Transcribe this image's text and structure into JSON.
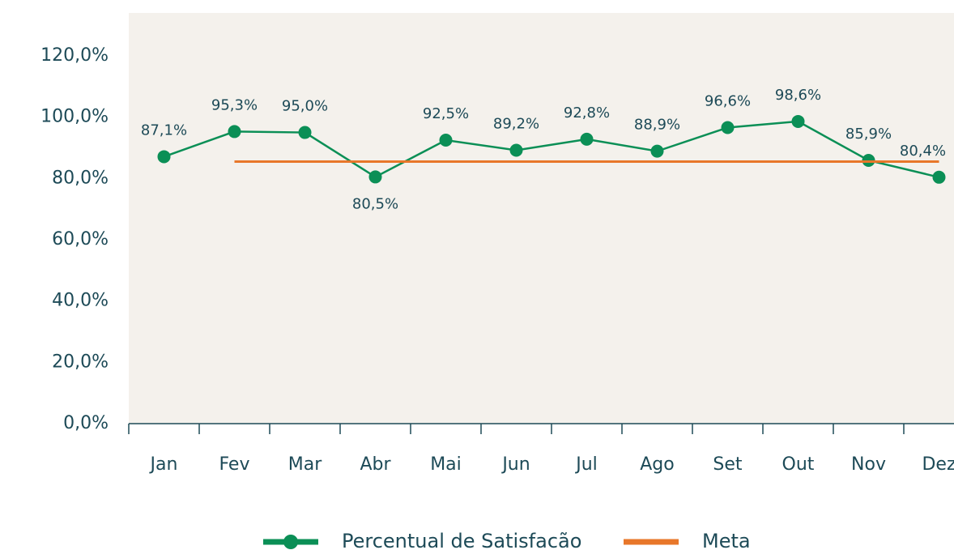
{
  "chart_data": {
    "type": "line",
    "categories": [
      "Jan",
      "Fev",
      "Mar",
      "Abr",
      "Mai",
      "Jun",
      "Jul",
      "Ago",
      "Set",
      "Out",
      "Nov",
      "Dez"
    ],
    "series": [
      {
        "name": "Percentual de Satisfacão",
        "color": "#0b8f56",
        "values": [
          87.1,
          95.3,
          95.0,
          80.5,
          92.5,
          89.2,
          92.8,
          88.9,
          96.6,
          98.6,
          85.9,
          80.4
        ],
        "value_labels": [
          "87,1%",
          "95,3%",
          "95,0%",
          "80,5%",
          "92,5%",
          "89,2%",
          "92,8%",
          "88,9%",
          "96,6%",
          "98,6%",
          "85,9%",
          "80,4%"
        ],
        "markers": true
      },
      {
        "name": "Meta",
        "color": "#e8772a",
        "values": [
          null,
          85.5,
          85.5,
          85.5,
          85.5,
          85.5,
          85.5,
          85.5,
          85.5,
          85.5,
          85.5,
          85.5
        ],
        "markers": false
      }
    ],
    "ylim": [
      0,
      134
    ],
    "yticks": [
      {
        "value": 0,
        "label": "0,0%"
      },
      {
        "value": 20,
        "label": "20,0%"
      },
      {
        "value": 40,
        "label": "40,0%"
      },
      {
        "value": 60,
        "label": "60,0%"
      },
      {
        "value": 80,
        "label": "80,0%"
      },
      {
        "value": 100,
        "label": "100,0%"
      },
      {
        "value": 120,
        "label": "120,0%"
      }
    ],
    "grid": false,
    "legend": "bottom"
  }
}
